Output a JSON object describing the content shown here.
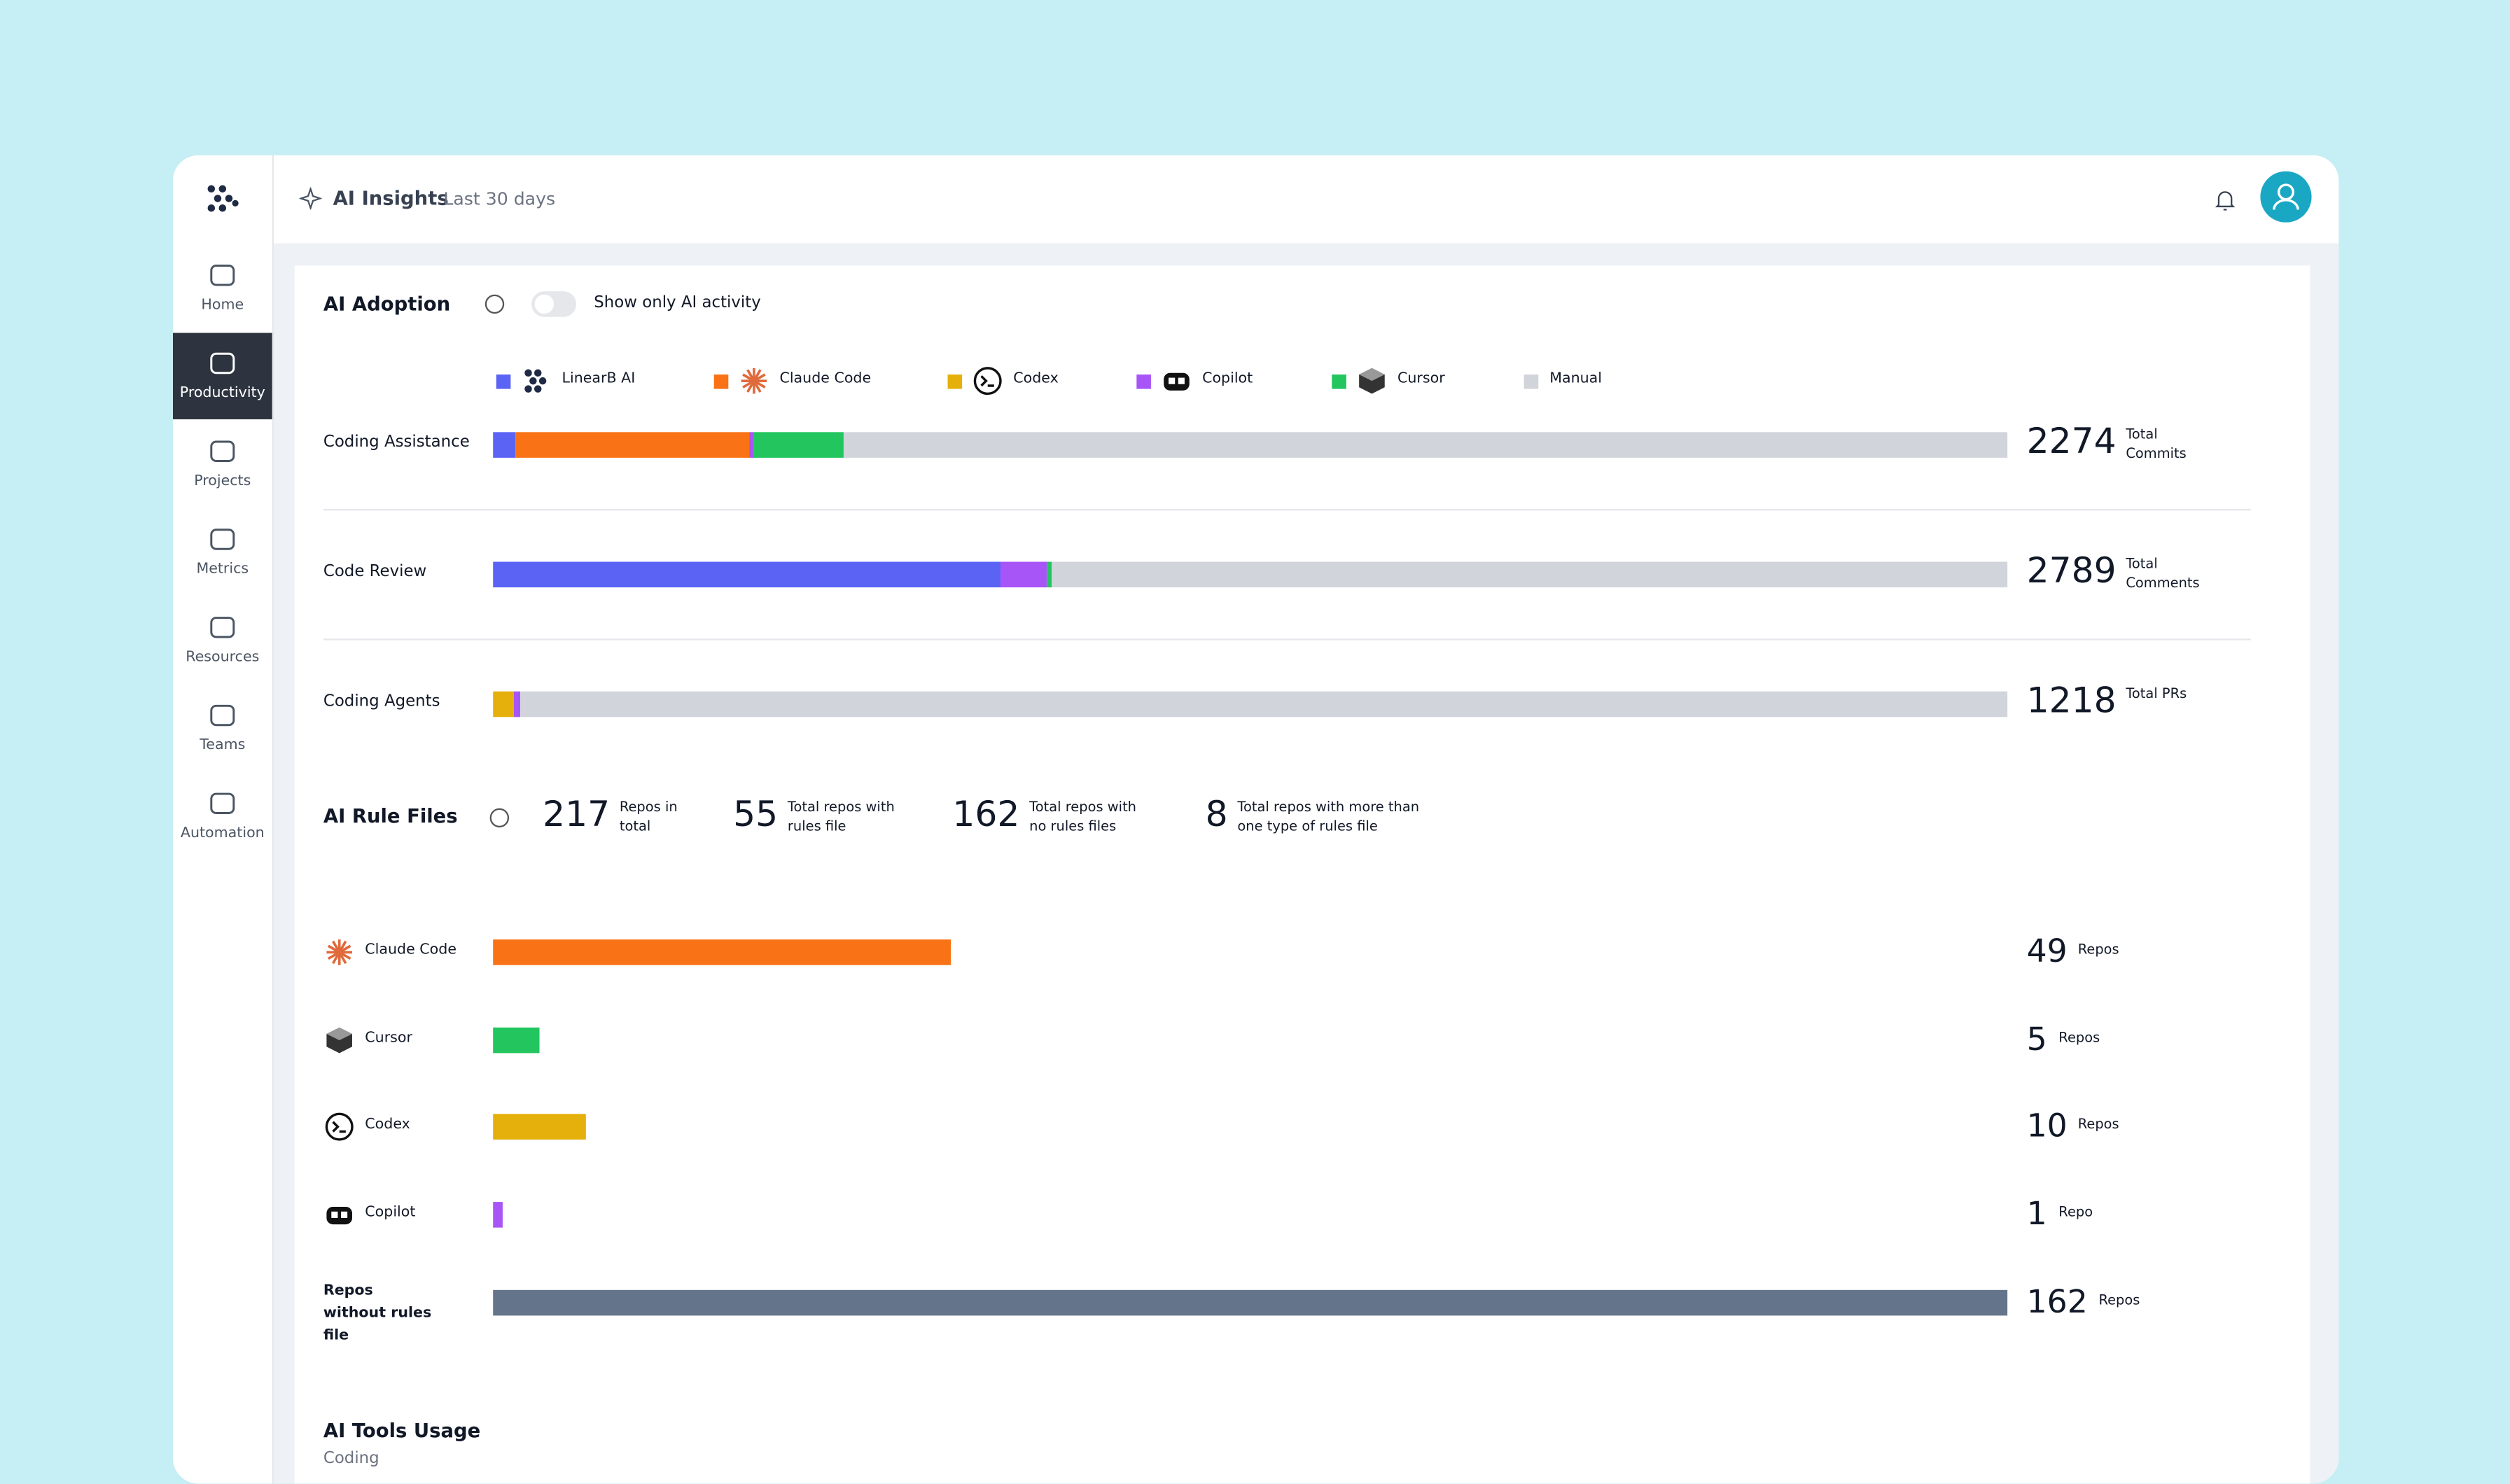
{
  "sidebar": {
    "items": [
      "Home",
      "Productivity",
      "Projects",
      "Metrics",
      "Resources",
      "Teams",
      "Automation"
    ],
    "active_item": 1
  },
  "header": {
    "title": "AI Insights",
    "period": "Last 30 days"
  },
  "adoption": {
    "title": "AI Adoption",
    "toggle_label": "Show only AI activity",
    "legend": [
      {
        "name": "LinearB AI",
        "color": "#5b63f5"
      },
      {
        "name": "Claude Code",
        "color": "#f97316"
      },
      {
        "name": "Codex",
        "color": "#e5b00b"
      },
      {
        "name": "Copilot",
        "color": "#a855f7"
      },
      {
        "name": "Cursor",
        "color": "#22c55e"
      },
      {
        "name": "Manual",
        "color": "#d1d5db"
      }
    ],
    "rows": [
      {
        "label": "Coding Assistance",
        "shares": [
          1.5,
          15.4,
          0,
          0.3,
          6.0,
          76.8
        ],
        "total": 2274,
        "unit": "Total Commits"
      },
      {
        "label": "Code Review",
        "shares": [
          33.5,
          0,
          0,
          3.1,
          0.3,
          63.1
        ],
        "total": 2789,
        "unit": "Total Comments"
      },
      {
        "label": "Coding Agents",
        "shares": [
          0,
          0,
          1.4,
          0.4,
          0,
          98.2
        ],
        "total": 1218,
        "unit": "Total PRs"
      }
    ]
  },
  "rule_files": {
    "title": "AI Rule Files",
    "stats": [
      {
        "value": 217,
        "label": "Repos in total"
      },
      {
        "value": 55,
        "label": "Total repos with rules file"
      },
      {
        "value": 162,
        "label": "Total repos with no rules files"
      },
      {
        "value": 8,
        "label": "Total repos with more than one type of rules file"
      }
    ],
    "tools": [
      {
        "name": "Claude Code",
        "repos": 49,
        "unit": "Repos",
        "color": "#f97316"
      },
      {
        "name": "Cursor",
        "repos": 5,
        "unit": "Repos",
        "color": "#22c55e"
      },
      {
        "name": "Codex",
        "repos": 10,
        "unit": "Repos",
        "color": "#e5b00b"
      },
      {
        "name": "Copilot",
        "repos": 1,
        "unit": "Repo",
        "color": "#a855f7"
      },
      {
        "name": "Repos without rules file",
        "repos": 162,
        "unit": "Repos",
        "color": "#64748b"
      }
    ]
  },
  "tools_usage": {
    "title": "AI Tools Usage",
    "subtitle": "Coding"
  }
}
